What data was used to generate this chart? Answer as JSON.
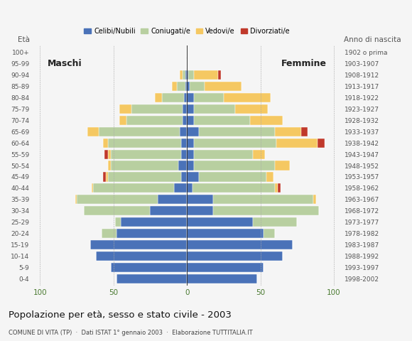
{
  "age_groups": [
    "0-4",
    "5-9",
    "10-14",
    "15-19",
    "20-24",
    "25-29",
    "30-34",
    "35-39",
    "40-44",
    "45-49",
    "50-54",
    "55-59",
    "60-64",
    "65-69",
    "70-74",
    "75-79",
    "80-84",
    "85-89",
    "90-94",
    "95-99",
    "100+"
  ],
  "birth_years": [
    "1998-2002",
    "1993-1997",
    "1988-1992",
    "1983-1987",
    "1978-1982",
    "1973-1977",
    "1968-1972",
    "1963-1967",
    "1958-1962",
    "1953-1957",
    "1948-1952",
    "1943-1947",
    "1938-1942",
    "1933-1937",
    "1928-1932",
    "1923-1927",
    "1918-1922",
    "1913-1917",
    "1908-1912",
    "1903-1907",
    "1902 o prima"
  ],
  "male": {
    "celibi": [
      48,
      52,
      62,
      66,
      48,
      45,
      25,
      20,
      9,
      4,
      6,
      4,
      4,
      5,
      3,
      3,
      2,
      1,
      1,
      0,
      0
    ],
    "coniugati": [
      0,
      0,
      0,
      0,
      10,
      4,
      45,
      55,
      55,
      50,
      46,
      48,
      50,
      55,
      38,
      35,
      15,
      6,
      2,
      0,
      0
    ],
    "vedovi": [
      0,
      0,
      0,
      0,
      0,
      0,
      0,
      1,
      1,
      1,
      2,
      2,
      3,
      8,
      5,
      8,
      5,
      3,
      2,
      0,
      0
    ],
    "divorziati": [
      0,
      0,
      0,
      0,
      0,
      0,
      0,
      0,
      0,
      2,
      0,
      2,
      0,
      0,
      0,
      0,
      0,
      0,
      0,
      0,
      0
    ]
  },
  "female": {
    "nubili": [
      48,
      52,
      65,
      72,
      52,
      45,
      18,
      18,
      4,
      8,
      5,
      5,
      5,
      8,
      5,
      5,
      5,
      2,
      1,
      0,
      0
    ],
    "coniugate": [
      0,
      0,
      0,
      0,
      8,
      30,
      72,
      68,
      56,
      46,
      55,
      40,
      56,
      52,
      38,
      28,
      20,
      10,
      4,
      0,
      0
    ],
    "vedove": [
      0,
      0,
      0,
      0,
      0,
      0,
      0,
      2,
      2,
      5,
      10,
      8,
      28,
      18,
      22,
      22,
      32,
      25,
      16,
      0,
      0
    ],
    "divorziate": [
      0,
      0,
      0,
      0,
      0,
      0,
      0,
      0,
      2,
      0,
      0,
      0,
      5,
      4,
      0,
      0,
      0,
      0,
      2,
      0,
      0
    ]
  },
  "colors": {
    "celibi_nubili": "#4a72b8",
    "coniugati": "#b8cfa0",
    "vedovi": "#f5c862",
    "divorziati": "#c0392b"
  },
  "xlim": 105,
  "title": "Popolazione per età, sesso e stato civile - 2003",
  "subtitle": "COMUNE DI VITA (TP)  ·  Dati ISTAT 1° gennaio 2003  ·  Elaborazione TUTTITALIA.IT",
  "legend_labels": [
    "Celibi/Nubili",
    "Coniugati/e",
    "Vedovi/e",
    "Divorziati/e"
  ],
  "bg_color": "#f5f5f5",
  "grid_color": "#cccccc",
  "eta_label": "Età",
  "anno_label": "Anno di nascita",
  "maschi_label": "Maschi",
  "femmine_label": "Femmine"
}
